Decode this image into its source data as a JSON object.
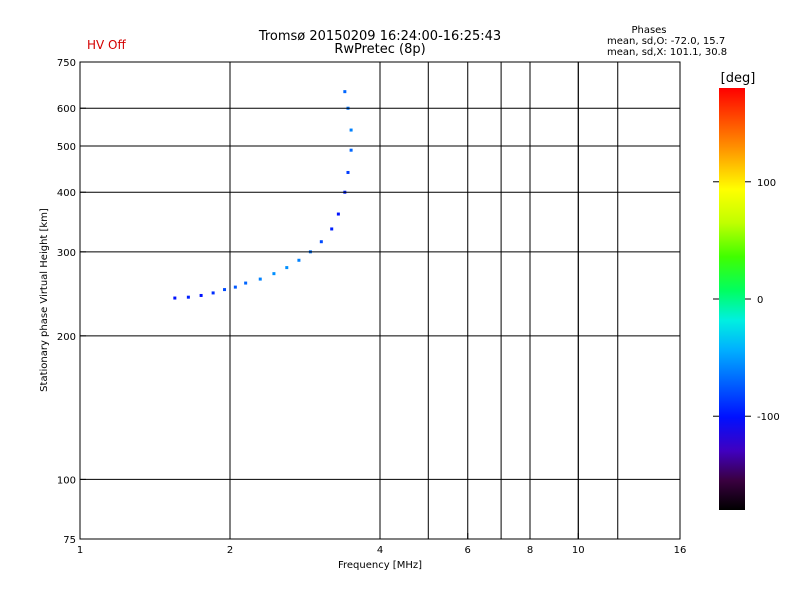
{
  "chart_data": {
    "type": "scatter",
    "title": "Tromsø 20150209 16:24:00-16:25:43",
    "subtitle": "RwPretec (8p)",
    "status": "HV Off",
    "phase_info": {
      "header": "Phases",
      "line_o": "mean, sd,O: -72.0, 15.7",
      "line_x": "mean, sd,X: 101.1, 30.8"
    },
    "xlabel": "Frequency [MHz]",
    "ylabel": "Stationary phase Virtual Height [km]",
    "x_scale": "log",
    "y_scale": "log",
    "xlim": [
      1,
      16
    ],
    "ylim": [
      75,
      750
    ],
    "x_ticks": [
      {
        "value": 1,
        "label": "1"
      },
      {
        "value": 2,
        "label": "2"
      },
      {
        "value": 4,
        "label": "4"
      },
      {
        "value": 6,
        "label": "6"
      },
      {
        "value": 8,
        "label": "8"
      },
      {
        "value": 10,
        "label": "10"
      },
      {
        "value": 16,
        "label": "16"
      }
    ],
    "x_extra_gridlines": [
      5,
      7,
      8,
      10,
      12
    ],
    "y_ticks": [
      {
        "value": 75,
        "label": "75"
      },
      {
        "value": 100,
        "label": "100"
      },
      {
        "value": 200,
        "label": "200"
      },
      {
        "value": 300,
        "label": "300"
      },
      {
        "value": 400,
        "label": "400"
      },
      {
        "value": 500,
        "label": "500"
      },
      {
        "value": 600,
        "label": "600"
      },
      {
        "value": 750,
        "label": "750"
      }
    ],
    "colorbar": {
      "label": "[deg]",
      "range": [
        -180,
        180
      ],
      "ticks": [
        {
          "value": 100,
          "label": "100"
        },
        {
          "value": 0,
          "label": "0"
        },
        {
          "value": -100,
          "label": "-100"
        }
      ]
    },
    "trace": {
      "description": "main F-region trace (o-mode)",
      "points": [
        {
          "f": 1.55,
          "h": 240,
          "phase": -100
        },
        {
          "f": 1.65,
          "h": 241,
          "phase": -95
        },
        {
          "f": 1.75,
          "h": 243,
          "phase": -100
        },
        {
          "f": 1.85,
          "h": 246,
          "phase": -90
        },
        {
          "f": 1.95,
          "h": 250,
          "phase": -80
        },
        {
          "f": 2.05,
          "h": 253,
          "phase": -75
        },
        {
          "f": 2.15,
          "h": 258,
          "phase": -70
        },
        {
          "f": 2.3,
          "h": 263,
          "phase": -60
        },
        {
          "f": 2.45,
          "h": 270,
          "phase": -55
        },
        {
          "f": 2.6,
          "h": 278,
          "phase": -55
        },
        {
          "f": 2.75,
          "h": 288,
          "phase": -60
        },
        {
          "f": 2.9,
          "h": 300,
          "phase": -65
        },
        {
          "f": 3.05,
          "h": 315,
          "phase": -80
        },
        {
          "f": 3.2,
          "h": 335,
          "phase": -95
        },
        {
          "f": 3.3,
          "h": 360,
          "phase": -100
        },
        {
          "f": 3.4,
          "h": 400,
          "phase": -95
        },
        {
          "f": 3.45,
          "h": 440,
          "phase": -85
        },
        {
          "f": 3.5,
          "h": 490,
          "phase": -70
        },
        {
          "f": 3.5,
          "h": 540,
          "phase": -60
        },
        {
          "f": 3.45,
          "h": 600,
          "phase": -65
        },
        {
          "f": 3.4,
          "h": 650,
          "phase": -70
        }
      ]
    }
  }
}
